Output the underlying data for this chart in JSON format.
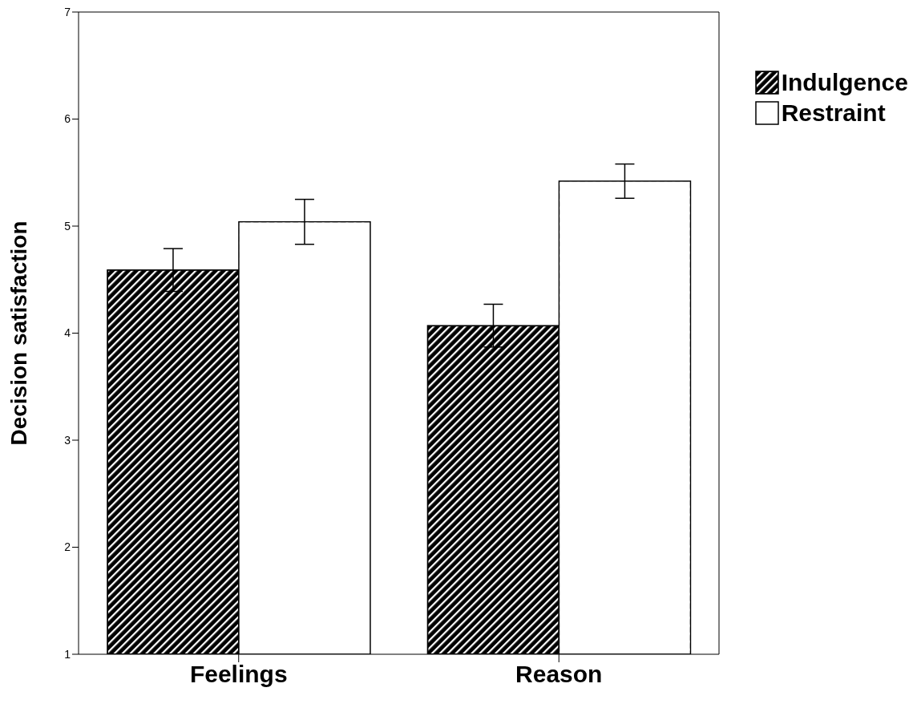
{
  "chart_data": {
    "type": "bar",
    "ylabel": "Decision satisfaction",
    "categories": [
      "Feelings",
      "Reason"
    ],
    "series": [
      {
        "name": "Indulgence",
        "color": "#000000",
        "values": [
          4.59,
          4.07
        ],
        "errors": [
          0.2,
          0.2
        ]
      },
      {
        "name": "Restraint",
        "color": "#ffffff",
        "values": [
          5.04,
          5.42
        ],
        "errors": [
          0.21,
          0.16
        ]
      }
    ],
    "ylim": [
      1,
      7
    ],
    "yticks": [
      1,
      2,
      3,
      4,
      5,
      6,
      7
    ],
    "grid": false,
    "legend": "top right"
  }
}
